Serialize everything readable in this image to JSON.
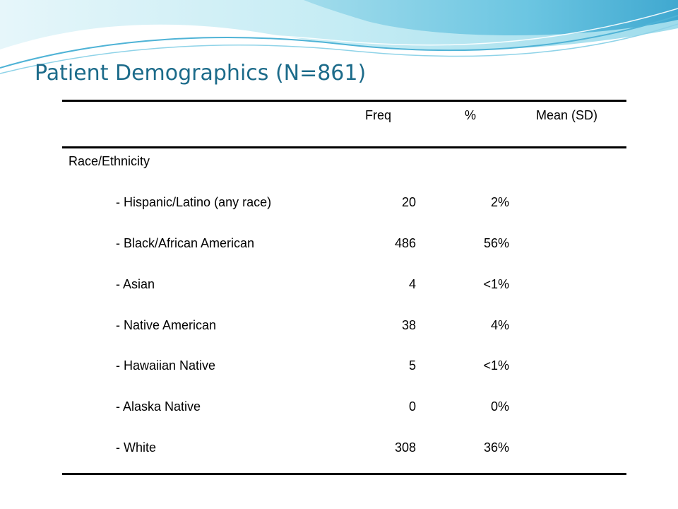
{
  "title": "Patient Demographics (N=861)",
  "colors": {
    "title": "#1c6b8a",
    "wave_light": "#bfe9f2",
    "wave_mid": "#7fd0e6",
    "wave_dark": "#3fa9cf"
  },
  "table": {
    "headers": {
      "label": "",
      "freq": "Freq",
      "pct": "%",
      "mean": "Mean (SD)"
    },
    "group_label": "Race/Ethnicity",
    "rows": [
      {
        "label": "- Hispanic/Latino (any race)",
        "freq": "20",
        "pct": "2%",
        "mean": ""
      },
      {
        "label": "- Black/African American",
        "freq": "486",
        "pct": "56%",
        "mean": ""
      },
      {
        "label": "- Asian",
        "freq": "4",
        "pct": "<1%",
        "mean": ""
      },
      {
        "label": "- Native American",
        "freq": "38",
        "pct": "4%",
        "mean": ""
      },
      {
        "label": "- Hawaiian Native",
        "freq": "5",
        "pct": "<1%",
        "mean": ""
      },
      {
        "label": "- Alaska Native",
        "freq": "0",
        "pct": "0%",
        "mean": ""
      },
      {
        "label": "- White",
        "freq": "308",
        "pct": "36%",
        "mean": ""
      }
    ]
  }
}
